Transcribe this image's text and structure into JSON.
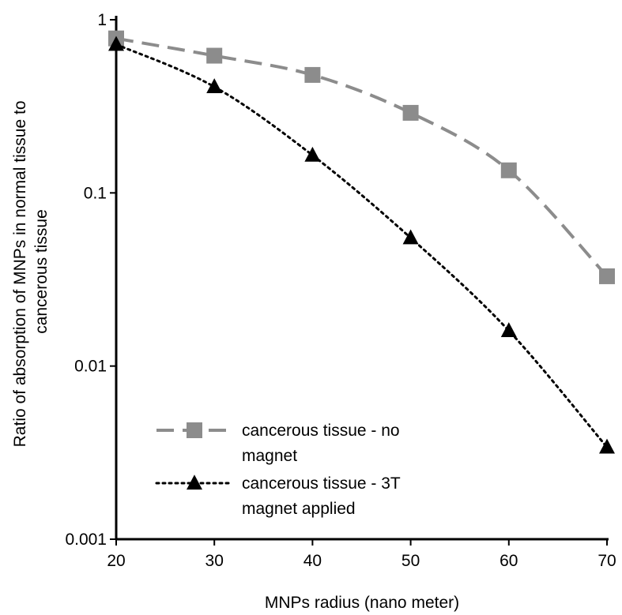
{
  "chart_data": {
    "type": "line",
    "title": "",
    "xlabel": "MNPs radius (nano meter)",
    "ylabel_lines": [
      "Ratio of absorption of MNPs in normal tissue to",
      "cancerous tissue"
    ],
    "x": [
      20,
      30,
      40,
      50,
      60,
      70
    ],
    "xlim": [
      20,
      70
    ],
    "ylim": [
      0.001,
      1
    ],
    "yscale": "log",
    "x_ticks": [
      "20",
      "30",
      "40",
      "50",
      "60",
      "70"
    ],
    "y_ticks": [
      "0.001",
      "0.01",
      "0.1",
      "1"
    ],
    "grid": false,
    "legend_position": "lower-left",
    "series": [
      {
        "name_lines": [
          "cancerous tissue - no",
          "magnet"
        ],
        "values": [
          0.78,
          0.62,
          0.48,
          0.29,
          0.135,
          0.033
        ],
        "color": "#8c8c8c",
        "marker": "square",
        "line_style": "dashed"
      },
      {
        "name_lines": [
          "cancerous tissue - 3T",
          "magnet  applied"
        ],
        "values": [
          0.72,
          0.41,
          0.165,
          0.055,
          0.016,
          0.0034
        ],
        "color": "#000000",
        "marker": "triangle",
        "line_style": "dotted"
      }
    ]
  }
}
